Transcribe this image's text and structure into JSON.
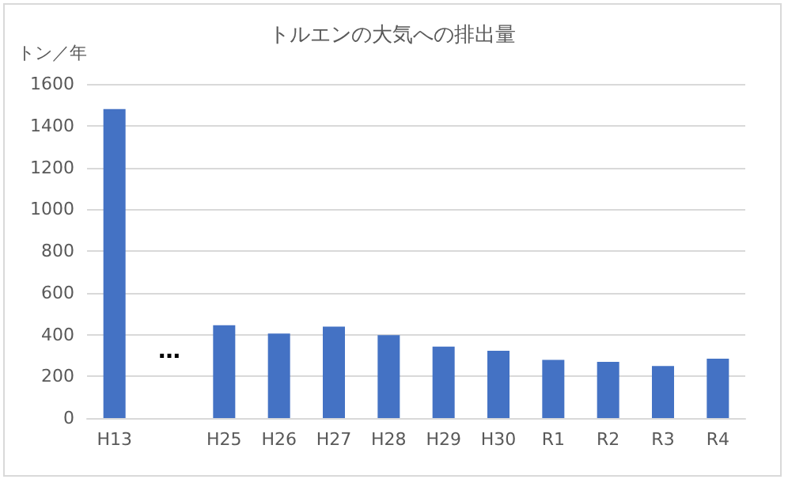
{
  "chart_data": {
    "type": "bar",
    "title": "トルエンの大気への排出量",
    "ylabel": "トン／年",
    "categories": [
      "H13",
      null,
      "H25",
      "H26",
      "H27",
      "H28",
      "H29",
      "H30",
      "R1",
      "R2",
      "R3",
      "R4"
    ],
    "values": [
      1480,
      null,
      445,
      405,
      438,
      397,
      342,
      322,
      279,
      269,
      249,
      284
    ],
    "color": "#4472c4",
    "ylim": [
      0,
      1600
    ],
    "yticks": [
      0,
      200,
      400,
      600,
      800,
      1000,
      1200,
      1400,
      1600
    ],
    "grid": "y",
    "annotations": [
      "…"
    ]
  }
}
